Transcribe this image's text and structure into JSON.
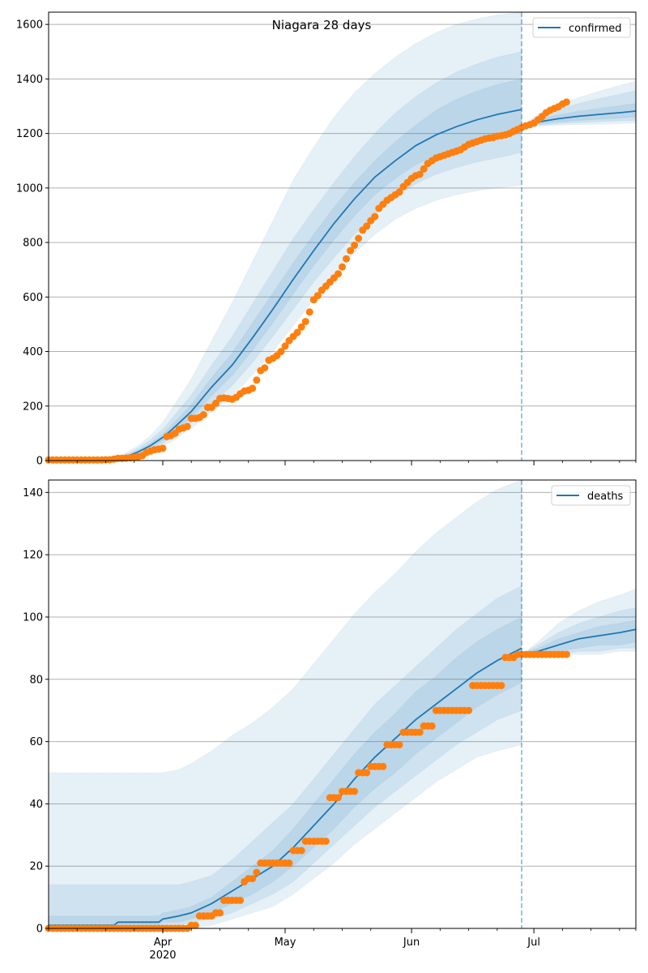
{
  "figure": {
    "title": "Niagara 28 days"
  },
  "chart_data": [
    {
      "type": "line",
      "name": "confirmed",
      "title": "Niagara 28 days",
      "xlabel": "",
      "ylabel": "",
      "x_unit": "days since 2020-03-04",
      "xlim": [
        0,
        144
      ],
      "ylim": [
        0,
        1645
      ],
      "yticks": [
        0,
        200,
        400,
        600,
        800,
        1000,
        1200,
        1400,
        1600
      ],
      "grid": "y",
      "legend": {
        "entries": [
          "confirmed"
        ],
        "placement": "top-right"
      },
      "forecast_cutoff_day": 116,
      "colors": {
        "line": "#1f77b4",
        "band": "#1f77b4",
        "points": "#ff7f0e",
        "cutoff": "#1f77b4"
      },
      "model_fit": {
        "days": [
          0,
          10,
          15,
          18,
          20,
          22,
          25,
          28,
          30,
          35,
          40,
          45,
          50,
          55,
          60,
          65,
          70,
          75,
          80,
          85,
          90,
          95,
          100,
          105,
          110,
          116
        ],
        "median": [
          0,
          2,
          6,
          12,
          20,
          32,
          55,
          85,
          110,
          180,
          270,
          350,
          450,
          555,
          665,
          770,
          870,
          960,
          1040,
          1100,
          1155,
          1195,
          1225,
          1250,
          1270,
          1288
        ],
        "band50_lo": [
          0,
          1,
          4,
          9,
          16,
          27,
          47,
          73,
          95,
          158,
          238,
          312,
          405,
          505,
          612,
          715,
          810,
          898,
          975,
          1035,
          1085,
          1120,
          1148,
          1168,
          1185,
          1200
        ],
        "band50_hi": [
          0,
          3,
          8,
          15,
          25,
          38,
          64,
          98,
          127,
          205,
          305,
          395,
          505,
          615,
          725,
          830,
          930,
          1020,
          1100,
          1170,
          1230,
          1285,
          1325,
          1355,
          1380,
          1400
        ],
        "band80_lo": [
          0,
          1,
          3,
          7,
          13,
          22,
          40,
          63,
          82,
          138,
          208,
          275,
          360,
          455,
          555,
          655,
          745,
          830,
          905,
          965,
          1015,
          1050,
          1075,
          1095,
          1110,
          1130
        ],
        "band80_hi": [
          0,
          4,
          10,
          18,
          30,
          46,
          76,
          115,
          150,
          240,
          350,
          455,
          575,
          695,
          815,
          920,
          1020,
          1115,
          1200,
          1275,
          1335,
          1385,
          1425,
          1455,
          1480,
          1500
        ],
        "band95_lo": [
          0,
          0,
          2,
          5,
          10,
          17,
          32,
          52,
          68,
          118,
          178,
          238,
          315,
          400,
          495,
          590,
          680,
          760,
          830,
          885,
          925,
          955,
          975,
          990,
          1000,
          1010
        ],
        "band95_hi": [
          0,
          5,
          12,
          22,
          37,
          56,
          92,
          140,
          185,
          300,
          440,
          580,
          730,
          880,
          1030,
          1150,
          1260,
          1350,
          1420,
          1480,
          1530,
          1570,
          1600,
          1620,
          1635,
          1645
        ]
      },
      "forecast": {
        "days": [
          116,
          120,
          125,
          130,
          135,
          140,
          144
        ],
        "median": [
          1225,
          1242,
          1254,
          1263,
          1270,
          1276,
          1282
        ],
        "band50_lo": [
          1225,
          1234,
          1242,
          1248,
          1252,
          1256,
          1260
        ],
        "band50_hi": [
          1225,
          1252,
          1268,
          1282,
          1292,
          1302,
          1310
        ],
        "band80_lo": [
          1225,
          1230,
          1236,
          1240,
          1243,
          1246,
          1248
        ],
        "band80_hi": [
          1225,
          1262,
          1288,
          1310,
          1328,
          1344,
          1358
        ],
        "band95_lo": [
          1225,
          1226,
          1230,
          1232,
          1234,
          1236,
          1238
        ],
        "band95_hi": [
          1225,
          1272,
          1305,
          1332,
          1355,
          1376,
          1392
        ]
      },
      "observed": {
        "days": [
          0,
          1,
          2,
          3,
          4,
          5,
          6,
          7,
          8,
          9,
          10,
          11,
          12,
          13,
          14,
          15,
          16,
          17,
          18,
          19,
          20,
          21,
          22,
          23,
          24,
          25,
          26,
          27,
          28,
          29,
          30,
          31,
          32,
          33,
          34,
          35,
          36,
          37,
          38,
          39,
          40,
          41,
          42,
          43,
          44,
          45,
          46,
          47,
          48,
          49,
          50,
          51,
          52,
          53,
          54,
          55,
          56,
          57,
          58,
          59,
          60,
          61,
          62,
          63,
          64,
          65,
          66,
          67,
          68,
          69,
          70,
          71,
          72,
          73,
          74,
          75,
          76,
          77,
          78,
          79,
          80,
          81,
          82,
          83,
          84,
          85,
          86,
          87,
          88,
          89,
          90,
          91,
          92,
          93,
          94,
          95,
          96,
          97,
          98,
          99,
          100,
          101,
          102,
          103,
          104,
          105,
          106,
          107,
          108,
          109,
          110,
          111,
          112,
          113,
          114,
          115,
          116,
          117,
          118,
          119,
          120,
          121,
          122,
          123,
          124,
          125,
          126,
          127
        ],
        "values": [
          2,
          2,
          2,
          2,
          2,
          2,
          2,
          2,
          2,
          2,
          2,
          2,
          2,
          2,
          3,
          3,
          5,
          8,
          8,
          9,
          10,
          12,
          14,
          18,
          30,
          35,
          40,
          42,
          45,
          88,
          92,
          100,
          115,
          120,
          125,
          155,
          155,
          158,
          168,
          195,
          195,
          210,
          228,
          230,
          228,
          225,
          232,
          245,
          255,
          258,
          265,
          295,
          330,
          340,
          368,
          375,
          385,
          400,
          420,
          440,
          455,
          470,
          490,
          510,
          545,
          590,
          605,
          625,
          640,
          655,
          670,
          685,
          710,
          740,
          770,
          790,
          815,
          845,
          860,
          880,
          895,
          925,
          940,
          955,
          965,
          975,
          985,
          1005,
          1020,
          1035,
          1045,
          1050,
          1070,
          1090,
          1100,
          1110,
          1115,
          1120,
          1125,
          1130,
          1135,
          1140,
          1150,
          1160,
          1165,
          1170,
          1175,
          1180,
          1183,
          1185,
          1190,
          1192,
          1195,
          1200,
          1208,
          1215,
          1222,
          1228,
          1232,
          1238,
          1250,
          1262,
          1276,
          1285,
          1292,
          1298,
          1308,
          1315
        ]
      }
    },
    {
      "type": "line",
      "name": "deaths",
      "title": "",
      "xlabel": "",
      "ylabel": "",
      "x_unit": "days since 2020-03-04",
      "xlim": [
        0,
        144
      ],
      "ylim": [
        0,
        144
      ],
      "yticks": [
        0,
        20,
        40,
        60,
        80,
        100,
        120,
        140
      ],
      "xticks": [
        {
          "day": 28,
          "label": "Apr",
          "sublabel": "2020"
        },
        {
          "day": 58,
          "label": "May",
          "sublabel": ""
        },
        {
          "day": 89,
          "label": "Jun",
          "sublabel": ""
        },
        {
          "day": 119,
          "label": "Jul",
          "sublabel": ""
        }
      ],
      "grid": "y",
      "legend": {
        "entries": [
          "deaths"
        ],
        "placement": "top-right"
      },
      "forecast_cutoff_day": 116,
      "colors": {
        "line": "#1f77b4",
        "band": "#1f77b4",
        "points": "#ff7f0e",
        "cutoff": "#1f77b4"
      },
      "model_fit": {
        "days": [
          0,
          16,
          17,
          27,
          28,
          32,
          35,
          40,
          45,
          50,
          55,
          60,
          65,
          70,
          75,
          80,
          85,
          90,
          95,
          100,
          105,
          110,
          116
        ],
        "median": [
          1,
          1,
          2,
          2,
          3,
          4,
          5,
          8,
          12,
          16,
          20,
          26,
          33,
          40,
          48,
          55,
          61,
          67,
          72,
          77,
          82,
          86,
          90
        ],
        "band50_lo": [
          0,
          0,
          1,
          1,
          2,
          2,
          3,
          5,
          8,
          11,
          15,
          20,
          26,
          32,
          39,
          45,
          50,
          56,
          61,
          66,
          71,
          75,
          79
        ],
        "band50_hi": [
          4,
          4,
          4,
          4,
          5,
          6,
          7,
          10,
          15,
          20,
          25,
          32,
          40,
          48,
          56,
          63,
          69,
          76,
          81,
          87,
          92,
          96,
          100
        ],
        "band80_lo": [
          0,
          0,
          0,
          0,
          1,
          1,
          2,
          3,
          5,
          8,
          11,
          15,
          21,
          27,
          33,
          39,
          44,
          49,
          54,
          59,
          63,
          67,
          70
        ],
        "band80_hi": [
          14,
          14,
          14,
          14,
          14,
          14,
          15,
          17,
          22,
          28,
          34,
          40,
          48,
          56,
          64,
          72,
          78,
          84,
          90,
          96,
          101,
          106,
          110
        ],
        "band95_lo": [
          0,
          0,
          0,
          0,
          0,
          0,
          0,
          1,
          3,
          5,
          7,
          11,
          16,
          21,
          27,
          32,
          37,
          42,
          47,
          51,
          55,
          57,
          59
        ],
        "band95_hi": [
          50,
          50,
          50,
          50,
          50,
          51,
          53,
          57,
          62,
          66,
          71,
          77,
          85,
          93,
          101,
          108,
          114,
          121,
          127,
          132,
          137,
          141,
          144
        ]
      },
      "forecast": {
        "days": [
          116,
          120,
          125,
          130,
          135,
          140,
          144
        ],
        "median": [
          88,
          89,
          91,
          93,
          94,
          95,
          96
        ],
        "band50_lo": [
          88,
          88,
          89,
          90,
          91,
          91,
          92
        ],
        "band50_hi": [
          88,
          90,
          93,
          95,
          97,
          98,
          99
        ],
        "band80_lo": [
          88,
          88,
          88,
          89,
          89,
          90,
          90
        ],
        "band80_hi": [
          88,
          91,
          95,
          98,
          100,
          102,
          103
        ],
        "band95_lo": [
          88,
          88,
          88,
          88,
          88,
          89,
          89
        ],
        "band95_hi": [
          88,
          92,
          98,
          102,
          105,
          107,
          109
        ]
      },
      "observed": {
        "days": [
          0,
          1,
          2,
          3,
          4,
          5,
          6,
          7,
          8,
          9,
          10,
          11,
          12,
          13,
          14,
          15,
          16,
          17,
          18,
          19,
          20,
          21,
          22,
          23,
          24,
          25,
          26,
          27,
          28,
          29,
          30,
          31,
          32,
          33,
          34,
          35,
          36,
          37,
          38,
          39,
          40,
          41,
          42,
          43,
          44,
          45,
          46,
          47,
          48,
          49,
          50,
          51,
          52,
          53,
          54,
          55,
          56,
          57,
          58,
          59,
          60,
          61,
          62,
          63,
          64,
          65,
          66,
          67,
          68,
          69,
          70,
          71,
          72,
          73,
          74,
          75,
          76,
          77,
          78,
          79,
          80,
          81,
          82,
          83,
          84,
          85,
          86,
          87,
          88,
          89,
          90,
          91,
          92,
          93,
          94,
          95,
          96,
          97,
          98,
          99,
          100,
          101,
          102,
          103,
          104,
          105,
          106,
          107,
          108,
          109,
          110,
          111,
          112,
          113,
          114,
          115,
          116,
          117,
          118,
          119,
          120,
          121,
          122,
          123,
          124,
          125,
          126,
          127
        ],
        "values": [
          0,
          0,
          0,
          0,
          0,
          0,
          0,
          0,
          0,
          0,
          0,
          0,
          0,
          0,
          0,
          0,
          0,
          0,
          0,
          0,
          0,
          0,
          0,
          0,
          0,
          0,
          0,
          0,
          0,
          0,
          0,
          0,
          0,
          0,
          0,
          1,
          1,
          4,
          4,
          4,
          4,
          5,
          5,
          9,
          9,
          9,
          9,
          9,
          15,
          16,
          16,
          18,
          21,
          21,
          21,
          21,
          21,
          21,
          21,
          21,
          25,
          25,
          25,
          28,
          28,
          28,
          28,
          28,
          28,
          42,
          42,
          42,
          44,
          44,
          44,
          44,
          50,
          50,
          50,
          52,
          52,
          52,
          52,
          59,
          59,
          59,
          59,
          63,
          63,
          63,
          63,
          63,
          65,
          65,
          65,
          70,
          70,
          70,
          70,
          70,
          70,
          70,
          70,
          70,
          78,
          78,
          78,
          78,
          78,
          78,
          78,
          78,
          87,
          87,
          87,
          88,
          88,
          88,
          88,
          88,
          88,
          88,
          88,
          88,
          88,
          88,
          88,
          88,
          88,
          90,
          90,
          90
        ]
      }
    }
  ]
}
